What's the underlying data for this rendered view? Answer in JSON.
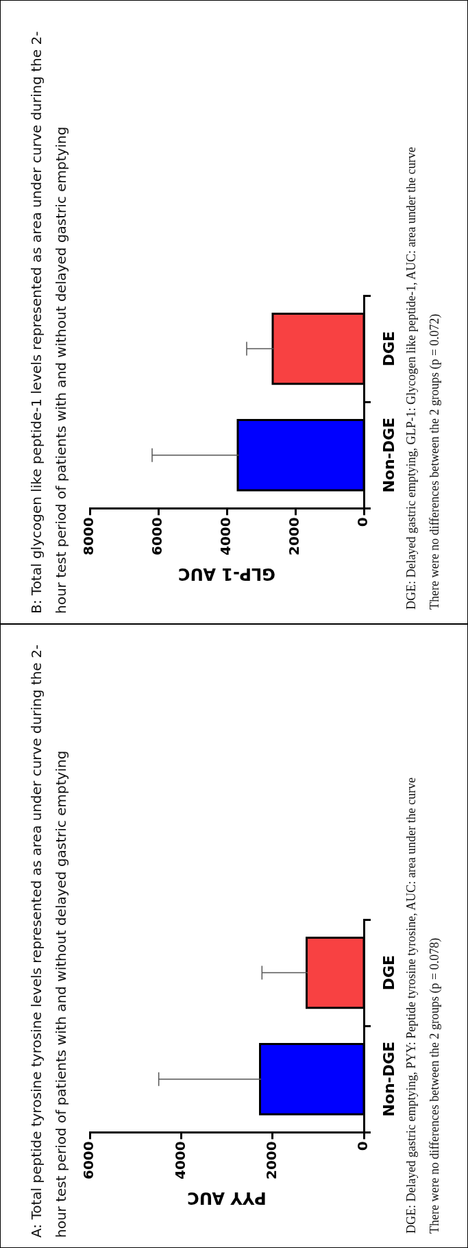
{
  "chart_data": [
    {
      "type": "bar",
      "orientation": "horizontal",
      "title": "A: Total peptide tyrosine tyrosine levels represented as area under curve during the 2-hour test period of patients with and without delayed gastric emptying",
      "xlabel": "PYY AUC",
      "categories": [
        "DGE",
        "Non-DGE"
      ],
      "values": [
        1230,
        2250
      ],
      "colors": [
        "#f84142",
        "#0000ff"
      ],
      "errors": [
        [
          1230,
          2230
        ],
        [
          2250,
          4490
        ]
      ],
      "xlim": [
        6000,
        0
      ],
      "xticks": [
        0,
        2000,
        4000,
        6000
      ],
      "grid": false,
      "legend": false,
      "annotations": [
        "DGE: Delayed gastric emptying, PYY: Peptide tyrosine tyrosine, AUC: area under the curve",
        "There were no differences between the 2 groups (p = 0.078)"
      ]
    },
    {
      "type": "bar",
      "orientation": "horizontal",
      "title": "B: Total glycogen like peptide-1 levels represented as area under curve during the 2-hour test period of patients with and without delayed gastric emptying",
      "xlabel": "GLP-1 AUC",
      "categories": [
        "DGE",
        "Non-DGE"
      ],
      "values": [
        2630,
        3650
      ],
      "colors": [
        "#f84142",
        "#0000ff"
      ],
      "errors": [
        [
          2630,
          3420
        ],
        [
          3650,
          6180
        ]
      ],
      "xlim": [
        8000,
        0
      ],
      "xticks": [
        0,
        2000,
        4000,
        6000,
        8000
      ],
      "grid": false,
      "legend": false,
      "annotations": [
        "DGE: Delayed gastric emptying, GLP-1: Glycogen like peptide-1, AUC: area under the curve",
        "There were no differences between the 2 groups (p = 0.072)"
      ]
    }
  ]
}
